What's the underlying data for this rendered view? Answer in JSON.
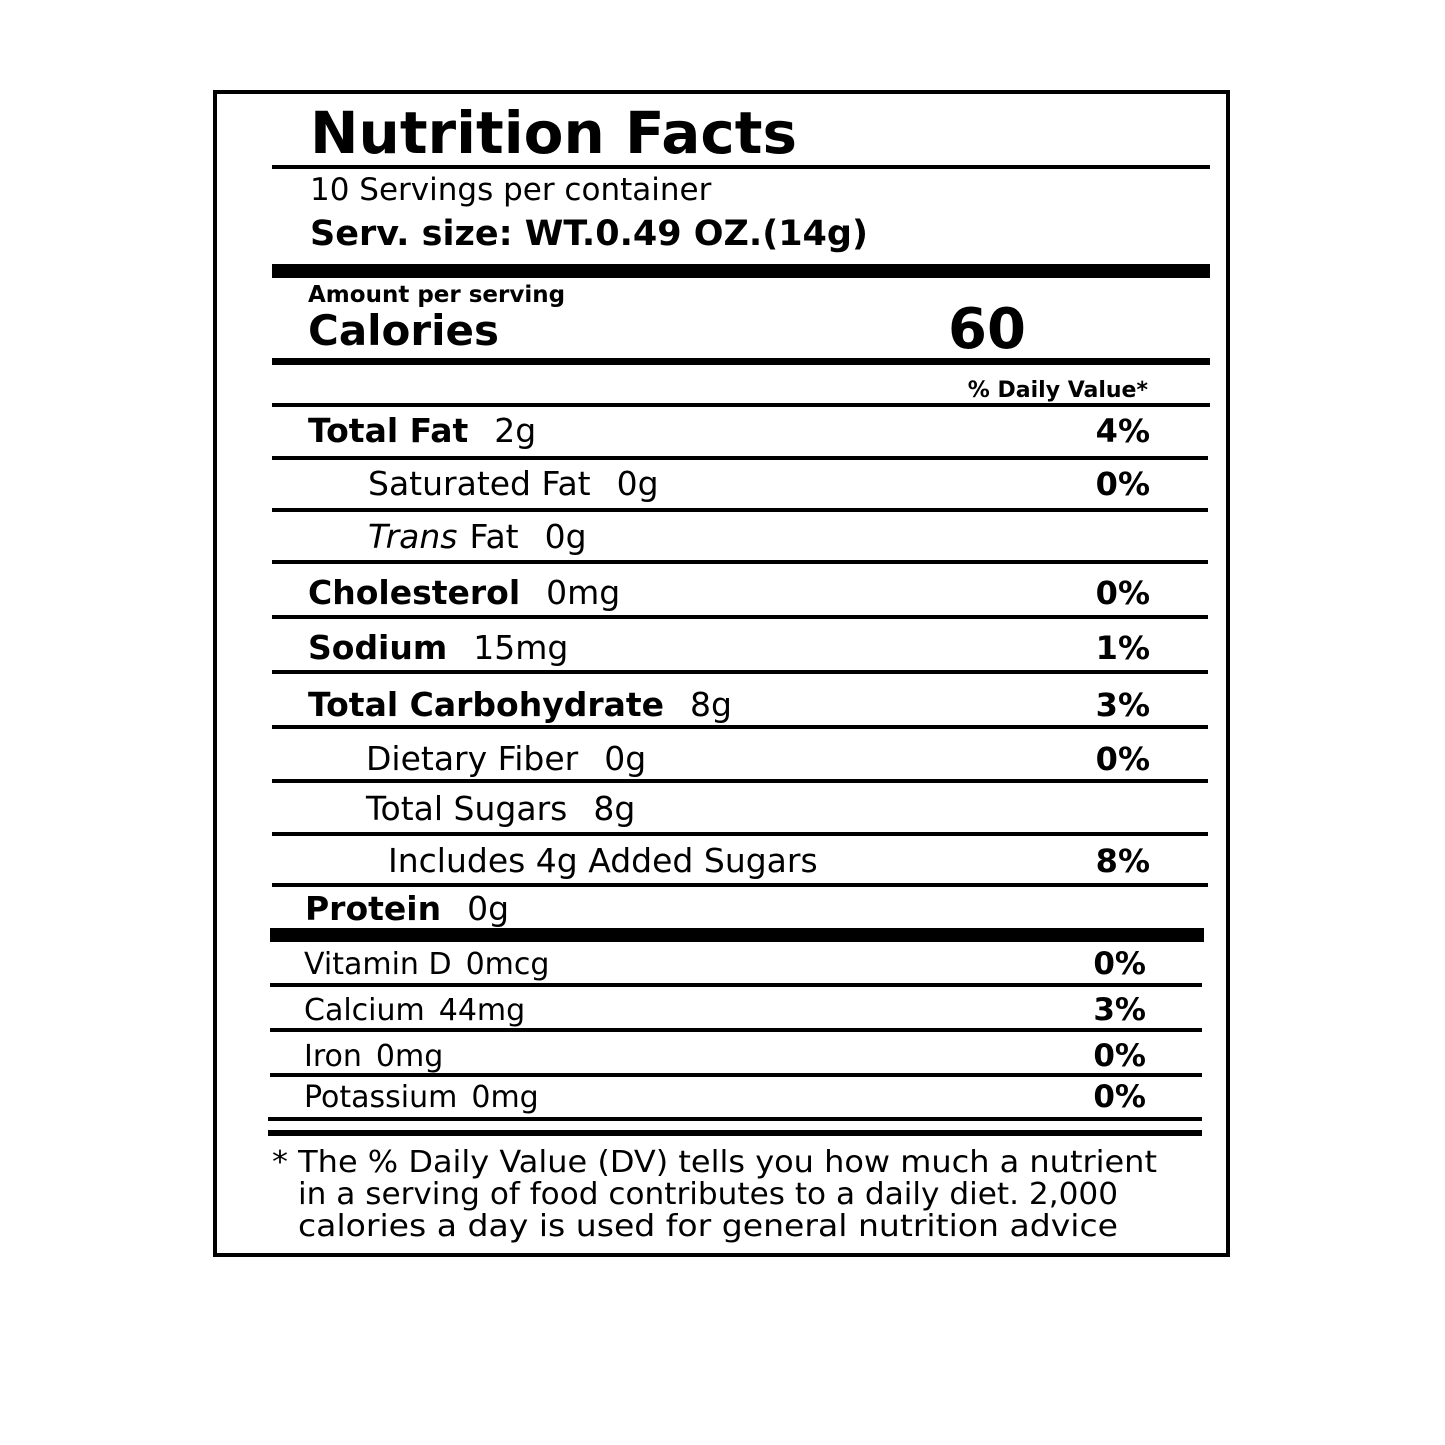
{
  "label": {
    "title": "Nutrition Facts",
    "servings": "10 Servings per container",
    "serving_size": "Serv. size: WT.0.49 OZ.(14g)",
    "amount_per_serving": "Amount per serving",
    "calories_label": "Calories",
    "calories_value": "60",
    "daily_value_header": "% Daily Value*",
    "nutrients": [
      {
        "name": "Total Fat",
        "amount": "2g",
        "dv": "4%"
      },
      {
        "name": "Saturated Fat",
        "amount": "0g",
        "dv": "0%"
      },
      {
        "name_italic": "Trans",
        "name": "Fat",
        "amount": "0g"
      },
      {
        "name": "Cholesterol",
        "amount": "0mg",
        "dv": "0%"
      },
      {
        "name": "Sodium",
        "amount": "15mg",
        "dv": "1%"
      },
      {
        "name": "Total Carbohydrate",
        "amount": "8g",
        "dv": "3%"
      },
      {
        "name": "Dietary Fiber",
        "amount": "0g",
        "dv": "0%"
      },
      {
        "name": "Total Sugars",
        "amount": "8g"
      },
      {
        "name": "Includes 4g Added Sugars",
        "dv": "8%"
      },
      {
        "name": "Protein",
        "amount": "0g"
      }
    ],
    "vitamins": [
      {
        "name": "Vitamin D",
        "amount": "0mcg",
        "dv": "0%"
      },
      {
        "name": "Calcium",
        "amount": "44mg",
        "dv": "3%"
      },
      {
        "name": "Iron",
        "amount": "0mg",
        "dv": "0%"
      },
      {
        "name": "Potassium",
        "amount": "0mg",
        "dv": "0%"
      }
    ],
    "footnote": [
      "* The % Daily Value (DV) tells you how much a nutrient",
      "in a serving of food contributes to a daily diet. 2,000",
      "calories a day is used for general nutrition advice"
    ]
  }
}
